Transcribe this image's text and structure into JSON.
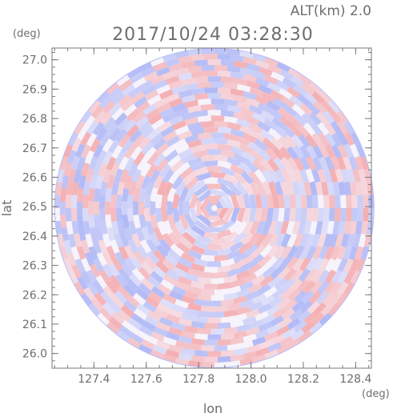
{
  "header": {
    "altitude_label": "ALT(km) 2.0",
    "timestamp": "2017/10/24 03:28:30"
  },
  "chart_data": {
    "type": "heatmap",
    "title": "2017/10/24 03:28:30",
    "subtitle": "ALT(km) 2.0",
    "xlabel": "lon",
    "ylabel": "lat",
    "x_unit": "(deg)",
    "y_unit": "(deg)",
    "xlim": [
      127.24,
      128.46
    ],
    "ylim": [
      25.95,
      27.04
    ],
    "x_ticks": [
      127.4,
      127.6,
      127.8,
      128.0,
      128.2,
      128.4
    ],
    "x_tick_labels": [
      "127.4",
      "127.6",
      "127.8",
      "128.0",
      "128.2",
      "128.4"
    ],
    "y_ticks": [
      26.0,
      26.1,
      26.2,
      26.3,
      26.4,
      26.5,
      26.6,
      26.7,
      26.8,
      26.9,
      27.0
    ],
    "y_tick_labels": [
      "26.0",
      "26.1",
      "26.2",
      "26.3",
      "26.4",
      "26.5",
      "26.6",
      "26.7",
      "26.8",
      "26.9",
      "27.0"
    ],
    "radar_center": {
      "lon": 127.86,
      "lat": 26.495
    },
    "radar_extent_deg": {
      "lon": 0.61,
      "lat": 0.545
    },
    "colors": {
      "positive": "#f4a7aa",
      "negative": "#a9b3f5",
      "axis": "#7a7a7a",
      "text": "#6e6e6e"
    },
    "grid": false,
    "legend": "none"
  }
}
